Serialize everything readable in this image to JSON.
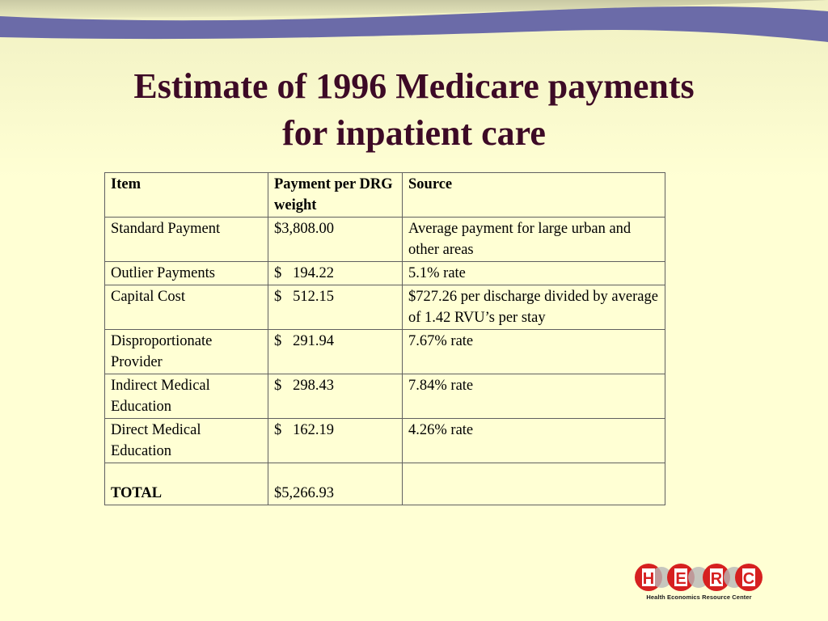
{
  "slide": {
    "title_line1": "Estimate of 1996 Medicare payments",
    "title_line2": "for inpatient care"
  },
  "table": {
    "headers": [
      "Item",
      "Payment per DRG weight",
      "Source"
    ],
    "rows": [
      {
        "item": "Standard Payment",
        "payment": "$3,808.00",
        "source": "Average payment for large urban and other areas"
      },
      {
        "item": "Outlier Payments",
        "payment": "$   194.22",
        "source": "5.1% rate"
      },
      {
        "item": "Capital Cost",
        "payment": "$   512.15",
        "source": "$727.26 per discharge divided by average of 1.42 RVU’s per stay"
      },
      {
        "item": "Disproportionate Provider",
        "payment": "$   291.94",
        "source": "7.67% rate"
      },
      {
        "item": "Indirect Medical Education",
        "payment": "$   298.43",
        "source": "7.84% rate"
      },
      {
        "item": "Direct Medical Education",
        "payment": "$   162.19",
        "source": "4.26% rate"
      }
    ],
    "total": {
      "item": "TOTAL",
      "payment": "$5,266.93",
      "source": ""
    }
  },
  "logo": {
    "letters": [
      "H",
      "E",
      "R",
      "C"
    ],
    "caption": "Health Economics Resource Center",
    "colors": {
      "red": "#D62020",
      "gray": "#B8B8B8",
      "dark": "#222222"
    }
  },
  "theme": {
    "background": "#FFFFD4",
    "swoosh": "#6B6BA8",
    "title_color": "#3D0A26"
  }
}
